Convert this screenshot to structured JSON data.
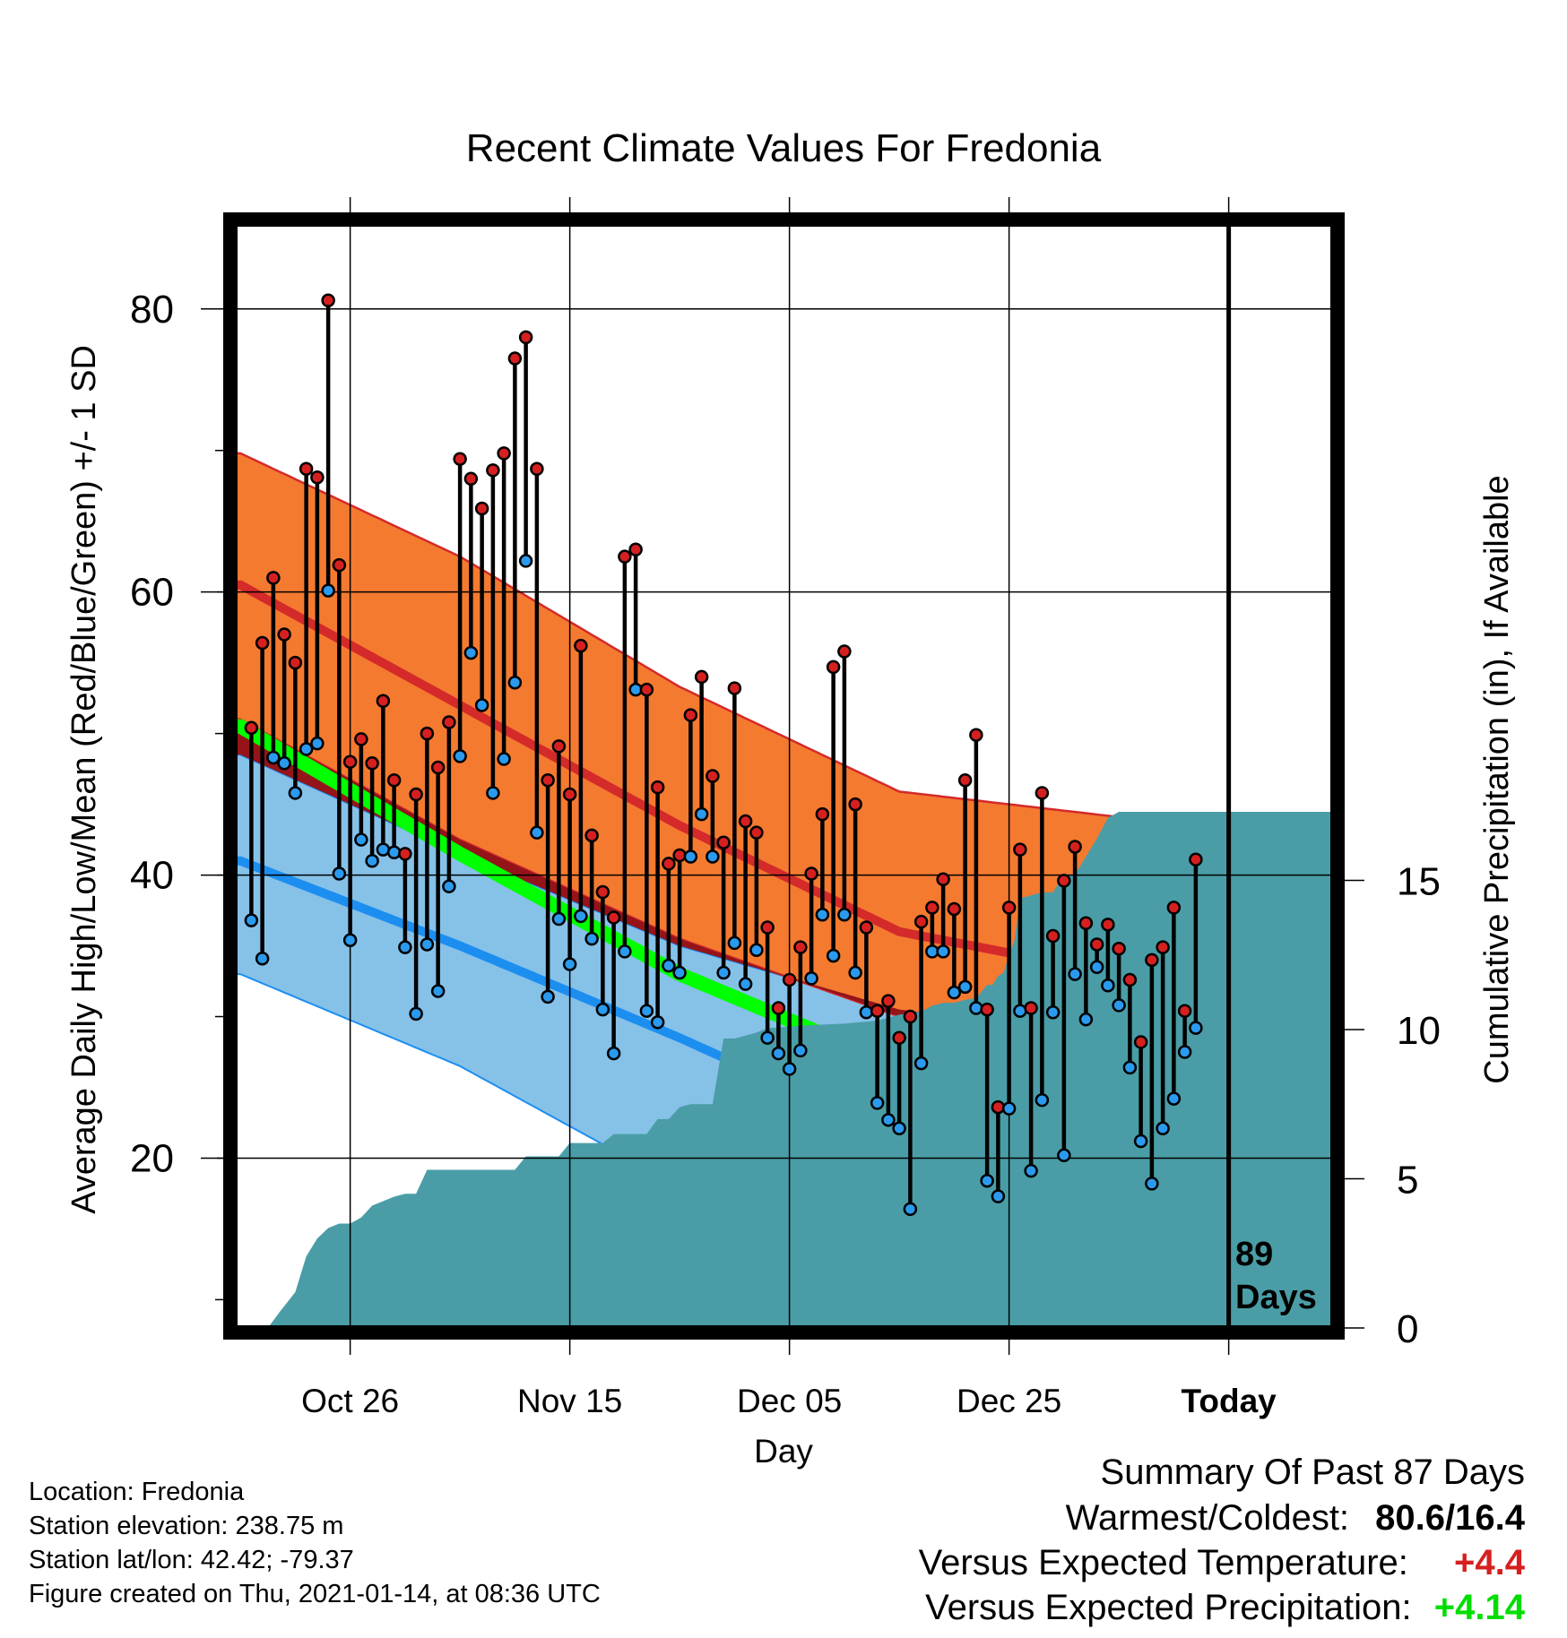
{
  "chart_data": {
    "type": "line",
    "title": "Recent Climate Values For Fredonia",
    "xlabel": "Day",
    "ylabel": "Average Daily High/Low/Mean (Red/Blue/Green) +/- 1 SD",
    "y2label": "Cumulative Precipitation (in), If Available",
    "x_ticks": [
      "Oct 26",
      "Nov 15",
      "Dec 05",
      "Dec 25",
      "Today"
    ],
    "x_tick_days": [
      10,
      30,
      50,
      70,
      90
    ],
    "x_range_days": [
      -0.5,
      99.5
    ],
    "ylim": [
      8,
      86
    ],
    "y_ticks": [
      20,
      40,
      60,
      80
    ],
    "y2lim": [
      0,
      37
    ],
    "y2_ticks": [
      0,
      5,
      10,
      15
    ],
    "today_day": 90,
    "today_label_top": "89",
    "today_label_bottom": "Days",
    "grid": true,
    "colors": {
      "high_band": "#f47a30",
      "high_mean": "#d42a2a",
      "low_band": "#86c1e8",
      "low_mean": "#1c8ef0",
      "mean_band": "#00ff00",
      "dark_red": "#94141a",
      "precip": "#4a9da6",
      "high_marker": "#d62020",
      "low_marker": "#2a9aee"
    },
    "normals": {
      "day": [
        0,
        20,
        40,
        60,
        80,
        99.5
      ],
      "high_mean": [
        60.5,
        52,
        43.5,
        36,
        33,
        33
      ],
      "high_upper": [
        69.8,
        62.5,
        53.3,
        45.9,
        44.1,
        43.8
      ],
      "high_lower": [
        51,
        42.5,
        35.5,
        30,
        29.8,
        29
      ],
      "low_mean": [
        41,
        35,
        28.5,
        21.5,
        15.5,
        12.5
      ],
      "low_upper": [
        48.5,
        41.5,
        35,
        30.5,
        28.5,
        25.5
      ],
      "low_lower": [
        33,
        26.5,
        18,
        12,
        8,
        4
      ],
      "avg_mean": [
        50.5,
        41.5,
        33,
        26.5,
        25,
        25
      ]
    },
    "series": [
      {
        "name": "High",
        "values": [
          50.4,
          56.4,
          61.0,
          57.0,
          55.0,
          68.7,
          68.1,
          80.6,
          61.9,
          48.0,
          49.6,
          47.9,
          52.3,
          46.7,
          41.5,
          45.7,
          50.0,
          47.6,
          50.8,
          69.4,
          68.0,
          65.9,
          68.6,
          69.8,
          76.5,
          78.0,
          68.7,
          46.7,
          49.1,
          45.7,
          56.2,
          42.8,
          38.8,
          37.0,
          62.5,
          63.0,
          53.1,
          46.2,
          40.8,
          41.4,
          51.3,
          54.0,
          47.0,
          42.3,
          53.2,
          43.8,
          43.0,
          36.3,
          30.6,
          32.6,
          34.9,
          40.1,
          44.3,
          54.7,
          55.8,
          45.0,
          36.3,
          30.4,
          31.1,
          28.5,
          30.0,
          36.7,
          37.7,
          39.7,
          37.6,
          46.7,
          49.9,
          30.5,
          23.6,
          37.7,
          41.8,
          30.6,
          45.8,
          35.7,
          39.6,
          42.0,
          36.6,
          35.1,
          36.5,
          34.8,
          32.6,
          28.2,
          34.0,
          34.9,
          37.7,
          30.4,
          41.1
        ]
      },
      {
        "name": "Low",
        "values": [
          36.8,
          34.1,
          48.3,
          47.9,
          45.8,
          48.9,
          49.3,
          60.1,
          40.1,
          35.4,
          42.5,
          41.0,
          41.8,
          41.6,
          34.9,
          30.2,
          35.1,
          31.8,
          39.2,
          48.4,
          55.7,
          52.0,
          45.8,
          48.2,
          53.6,
          62.2,
          43.0,
          31.4,
          36.9,
          33.7,
          37.1,
          35.5,
          30.5,
          27.4,
          34.6,
          53.1,
          30.4,
          29.6,
          33.6,
          33.1,
          41.3,
          44.3,
          41.3,
          33.1,
          35.2,
          32.3,
          34.7,
          28.5,
          27.4,
          26.3,
          27.6,
          32.7,
          37.2,
          34.3,
          37.2,
          33.1,
          30.3,
          23.9,
          22.7,
          22.1,
          16.4,
          26.7,
          34.6,
          34.6,
          31.7,
          32.1,
          30.6,
          18.4,
          17.3,
          23.5,
          30.4,
          19.1,
          24.1,
          30.3,
          20.2,
          33.0,
          29.8,
          33.5,
          32.2,
          30.8,
          26.4,
          21.2,
          18.2,
          22.1,
          24.2,
          27.5,
          29.2
        ]
      },
      {
        "name": "Cumulative Precipitation",
        "day": [
          2.5,
          3.5,
          5,
          6,
          7,
          8,
          9,
          10,
          11,
          12,
          13,
          14,
          15,
          16,
          17,
          18,
          19,
          20,
          25,
          26,
          27,
          29,
          30,
          33,
          34,
          35,
          36,
          37,
          38,
          39,
          40,
          41,
          42,
          43,
          44,
          45,
          46,
          47,
          48,
          50,
          52,
          55,
          58,
          59,
          60,
          61,
          62,
          63,
          64,
          65,
          66,
          67,
          68,
          68.5,
          69,
          69.5,
          70,
          70.5,
          71,
          72,
          73,
          74,
          75,
          76,
          77,
          78,
          79,
          80,
          81,
          82,
          99.5
        ],
        "values": [
          0,
          0.5,
          1.2,
          2.4,
          3,
          3.35,
          3.5,
          3.5,
          3.7,
          4.1,
          4.25,
          4.4,
          4.5,
          4.5,
          5.3,
          5.3,
          5.3,
          5.3,
          5.3,
          5.75,
          5.75,
          5.75,
          6.2,
          6.2,
          6.5,
          6.5,
          6.5,
          6.5,
          7,
          7,
          7.4,
          7.5,
          7.5,
          7.5,
          9.7,
          9.7,
          9.8,
          9.9,
          10.05,
          10.1,
          10.15,
          10.2,
          10.3,
          10.4,
          10.5,
          10.55,
          10.6,
          10.8,
          10.9,
          10.9,
          11,
          11.05,
          11.5,
          11.5,
          11.8,
          11.9,
          12.5,
          13,
          14.4,
          14.5,
          14.6,
          14.6,
          15.2,
          15.2,
          15.8,
          16.4,
          17.1,
          17.3,
          17.3,
          17.3,
          17.3
        ]
      }
    ]
  },
  "footer": {
    "location": "Location: Fredonia",
    "elevation": "Station elevation: 238.75 m",
    "latlon": "Station lat/lon: 42.42; -79.37",
    "created": "Figure created on Thu, 2021-01-14, at 08:36 UTC"
  },
  "summary": {
    "title": "Summary Of Past 87 Days",
    "warm_cold_label": "Warmest/Coldest:",
    "warm_cold_value": "80.6/16.4",
    "temp_label": "Versus Expected Temperature:",
    "temp_value": "+4.4",
    "temp_color": "#d62020",
    "precip_label": "Versus Expected Precipitation:",
    "precip_value": "+4.14",
    "precip_color": "#00dd00"
  }
}
